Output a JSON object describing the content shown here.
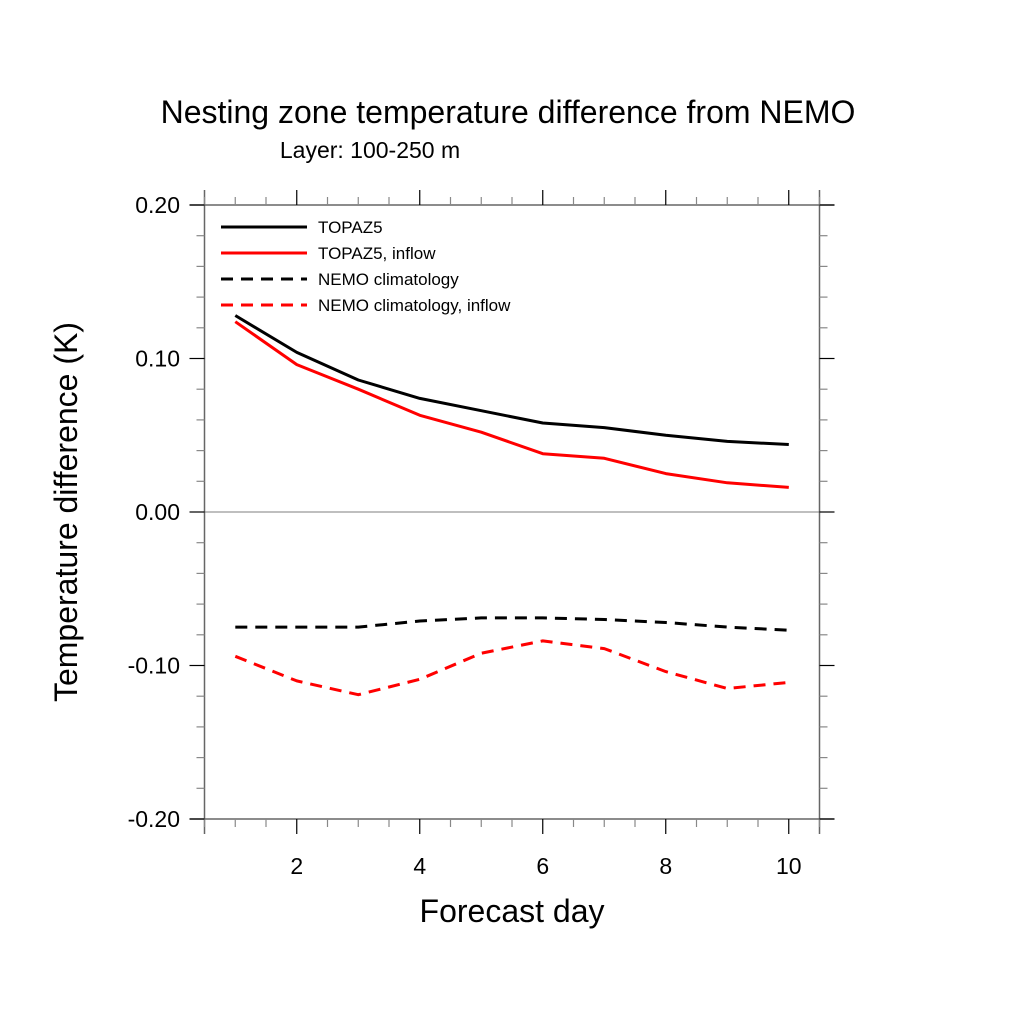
{
  "chart_data": {
    "type": "line",
    "title": "Nesting zone temperature difference from NEMO",
    "subtitle": "Layer: 100-250 m",
    "xlabel": "Forecast day",
    "ylabel": "Temperature difference (K)",
    "xlim": [
      0.5,
      10.5
    ],
    "ylim": [
      -0.2,
      0.2
    ],
    "xticks": [
      2,
      4,
      6,
      8,
      10
    ],
    "xtick_labels": [
      "2",
      "4",
      "6",
      "8",
      "10"
    ],
    "yticks": [
      -0.2,
      -0.1,
      0.0,
      0.1,
      0.2
    ],
    "ytick_labels": [
      "-0.20",
      "-0.10",
      "0.00",
      "0.10",
      "0.20"
    ],
    "x_minor_step": 0.5,
    "y_minor_step": 0.02,
    "zero_line": true,
    "grid": false,
    "legend_position": "top-left",
    "x": [
      1,
      2,
      3,
      4,
      5,
      6,
      7,
      8,
      9,
      10
    ],
    "series": [
      {
        "name": "TOPAZ5",
        "color": "#000000",
        "dash": "solid",
        "values": [
          0.128,
          0.104,
          0.086,
          0.074,
          0.066,
          0.058,
          0.055,
          0.05,
          0.046,
          0.044
        ]
      },
      {
        "name": "TOPAZ5, inflow",
        "color": "#ff0000",
        "dash": "solid",
        "values": [
          0.124,
          0.096,
          0.08,
          0.063,
          0.052,
          0.038,
          0.035,
          0.025,
          0.019,
          0.016
        ]
      },
      {
        "name": "NEMO climatology",
        "color": "#000000",
        "dash": "dashed",
        "values": [
          -0.075,
          -0.075,
          -0.075,
          -0.071,
          -0.069,
          -0.069,
          -0.07,
          -0.072,
          -0.075,
          -0.077
        ]
      },
      {
        "name": "NEMO climatology, inflow",
        "color": "#ff0000",
        "dash": "dashed",
        "values": [
          -0.094,
          -0.11,
          -0.119,
          -0.109,
          -0.092,
          -0.084,
          -0.089,
          -0.104,
          -0.115,
          -0.111
        ]
      }
    ]
  }
}
